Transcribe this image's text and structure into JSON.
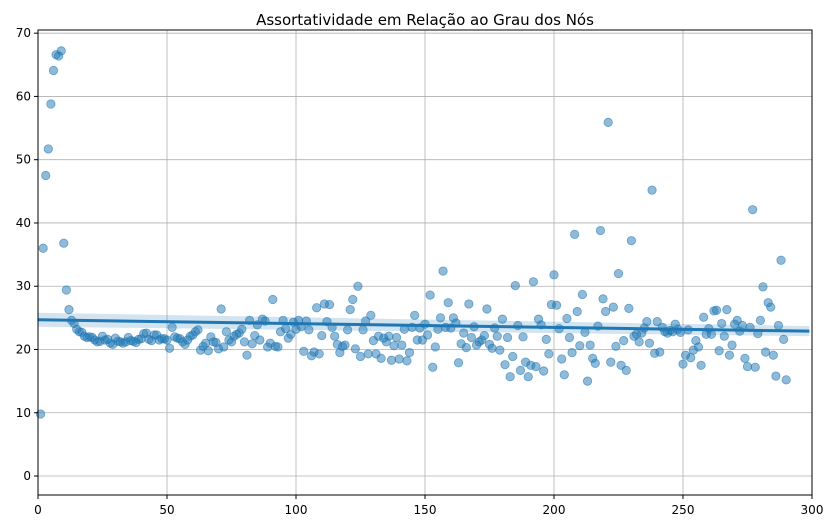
{
  "chart_data": {
    "type": "scatter",
    "title": "Assortatividade em Relação ao Grau dos Nós",
    "xlabel": "",
    "ylabel": "",
    "xlim": [
      0,
      300
    ],
    "ylim": [
      -3,
      70.5
    ],
    "x_ticks": [
      0,
      50,
      100,
      150,
      200,
      250,
      300
    ],
    "y_ticks": [
      0,
      10,
      20,
      30,
      40,
      50,
      60,
      70
    ],
    "grid": true,
    "colors": {
      "points": "#1f77b4",
      "line": "#1f77b4",
      "band": "#1f77b4"
    },
    "regression": {
      "x": [
        0,
        299
      ],
      "y": [
        24.7,
        22.9
      ],
      "ci_width": [
        1.1,
        0.8
      ]
    },
    "points": [
      [
        1,
        9.8
      ],
      [
        2,
        36
      ],
      [
        3,
        47.5
      ],
      [
        4,
        51.7
      ],
      [
        5,
        58.8
      ],
      [
        6,
        64.1
      ],
      [
        7,
        66.6
      ],
      [
        8,
        66.4
      ],
      [
        9,
        67.2
      ],
      [
        10,
        36.8
      ],
      [
        11,
        29.4
      ],
      [
        12,
        26.3
      ],
      [
        13,
        24.6
      ],
      [
        14,
        24.1
      ],
      [
        15,
        23.2
      ],
      [
        16,
        22.8
      ],
      [
        17,
        22.7
      ],
      [
        18,
        22.1
      ],
      [
        19,
        21.9
      ],
      [
        20,
        22
      ],
      [
        21,
        21.9
      ],
      [
        22,
        21.5
      ],
      [
        23,
        21.2
      ],
      [
        24,
        21.3
      ],
      [
        25,
        22.1
      ],
      [
        26,
        21.5
      ],
      [
        27,
        21.6
      ],
      [
        28,
        21
      ],
      [
        29,
        20.8
      ],
      [
        30,
        21.8
      ],
      [
        31,
        21.3
      ],
      [
        32,
        21.2
      ],
      [
        33,
        21
      ],
      [
        34,
        21.2
      ],
      [
        35,
        21.9
      ],
      [
        36,
        21.4
      ],
      [
        37,
        21.3
      ],
      [
        38,
        21.1
      ],
      [
        39,
        21.6
      ],
      [
        40,
        21.7
      ],
      [
        41,
        22.5
      ],
      [
        42,
        22.6
      ],
      [
        43,
        21.6
      ],
      [
        44,
        21.4
      ],
      [
        45,
        22.3
      ],
      [
        46,
        22.3
      ],
      [
        47,
        21.5
      ],
      [
        48,
        21.7
      ],
      [
        49,
        21.7
      ],
      [
        50,
        21.5
      ],
      [
        51,
        20.2
      ],
      [
        52,
        23.5
      ],
      [
        53,
        22
      ],
      [
        54,
        21.8
      ],
      [
        55,
        21.7
      ],
      [
        56,
        21.2
      ],
      [
        57,
        20.8
      ],
      [
        58,
        21.5
      ],
      [
        59,
        22.1
      ],
      [
        60,
        22.3
      ],
      [
        61,
        22.8
      ],
      [
        62,
        23.1
      ],
      [
        63,
        19.9
      ],
      [
        64,
        20.5
      ],
      [
        65,
        21
      ],
      [
        66,
        19.8
      ],
      [
        67,
        22
      ],
      [
        68,
        21.2
      ],
      [
        69,
        21.1
      ],
      [
        70,
        20.1
      ],
      [
        71,
        26.4
      ],
      [
        72,
        20.4
      ],
      [
        73,
        22.8
      ],
      [
        74,
        21.5
      ],
      [
        75,
        21.2
      ],
      [
        76,
        22.1
      ],
      [
        77,
        22.4
      ],
      [
        78,
        22.6
      ],
      [
        79,
        23.2
      ],
      [
        80,
        21.2
      ],
      [
        81,
        19.1
      ],
      [
        82,
        24.6
      ],
      [
        83,
        20.9
      ],
      [
        84,
        22.2
      ],
      [
        85,
        23.9
      ],
      [
        86,
        21.5
      ],
      [
        87,
        24.8
      ],
      [
        88,
        24.5
      ],
      [
        89,
        20.4
      ],
      [
        90,
        21
      ],
      [
        91,
        27.9
      ],
      [
        92,
        20.5
      ],
      [
        93,
        20.4
      ],
      [
        94,
        22.8
      ],
      [
        95,
        24.6
      ],
      [
        96,
        23.3
      ],
      [
        97,
        21.8
      ],
      [
        98,
        22.4
      ],
      [
        99,
        24.3
      ],
      [
        100,
        23.2
      ],
      [
        101,
        24.6
      ],
      [
        102,
        23.6
      ],
      [
        103,
        19.7
      ],
      [
        104,
        24.5
      ],
      [
        105,
        23.1
      ],
      [
        106,
        19
      ],
      [
        107,
        19.6
      ],
      [
        108,
        26.6
      ],
      [
        109,
        19.3
      ],
      [
        110,
        22.2
      ],
      [
        111,
        27.2
      ],
      [
        112,
        24.4
      ],
      [
        113,
        27.1
      ],
      [
        114,
        23.5
      ],
      [
        115,
        22.1
      ],
      [
        116,
        20.8
      ],
      [
        117,
        19.5
      ],
      [
        118,
        20.5
      ],
      [
        119,
        20.7
      ],
      [
        120,
        23.1
      ],
      [
        121,
        26.3
      ],
      [
        122,
        27.9
      ],
      [
        123,
        20.1
      ],
      [
        124,
        30
      ],
      [
        125,
        18.9
      ],
      [
        126,
        23.1
      ],
      [
        127,
        24.5
      ],
      [
        128,
        19.3
      ],
      [
        129,
        25.4
      ],
      [
        130,
        21.4
      ],
      [
        131,
        19.3
      ],
      [
        132,
        22.1
      ],
      [
        133,
        18.6
      ],
      [
        134,
        21.8
      ],
      [
        135,
        21.2
      ],
      [
        136,
        22.1
      ],
      [
        137,
        18.3
      ],
      [
        138,
        20.6
      ],
      [
        139,
        21.9
      ],
      [
        140,
        18.5
      ],
      [
        141,
        20.7
      ],
      [
        142,
        23.2
      ],
      [
        143,
        18.2
      ],
      [
        144,
        19.5
      ],
      [
        145,
        23.5
      ],
      [
        146,
        25.4
      ],
      [
        147,
        21.5
      ],
      [
        148,
        23.4
      ],
      [
        149,
        21.5
      ],
      [
        150,
        24
      ],
      [
        151,
        22.3
      ],
      [
        152,
        28.6
      ],
      [
        153,
        17.2
      ],
      [
        154,
        20.4
      ],
      [
        155,
        23.2
      ],
      [
        156,
        25
      ],
      [
        157,
        32.4
      ],
      [
        158,
        23.5
      ],
      [
        159,
        27.4
      ],
      [
        160,
        23.4
      ],
      [
        161,
        25
      ],
      [
        162,
        24.2
      ],
      [
        163,
        17.9
      ],
      [
        164,
        20.9
      ],
      [
        165,
        22.6
      ],
      [
        166,
        20.3
      ],
      [
        167,
        27.2
      ],
      [
        168,
        21.9
      ],
      [
        169,
        23.6
      ],
      [
        170,
        20.7
      ],
      [
        171,
        21.2
      ],
      [
        172,
        21.5
      ],
      [
        173,
        22.2
      ],
      [
        174,
        26.4
      ],
      [
        175,
        20.8
      ],
      [
        176,
        20.2
      ],
      [
        177,
        23.4
      ],
      [
        178,
        22.1
      ],
      [
        179,
        19.9
      ],
      [
        180,
        24.8
      ],
      [
        181,
        17.6
      ],
      [
        182,
        21.9
      ],
      [
        183,
        15.7
      ],
      [
        184,
        18.9
      ],
      [
        185,
        30.1
      ],
      [
        186,
        23.8
      ],
      [
        187,
        16.7
      ],
      [
        188,
        22
      ],
      [
        189,
        18
      ],
      [
        190,
        15.7
      ],
      [
        191,
        17.5
      ],
      [
        192,
        30.7
      ],
      [
        193,
        17.3
      ],
      [
        194,
        24.8
      ],
      [
        195,
        23.9
      ],
      [
        196,
        16.6
      ],
      [
        197,
        21.6
      ],
      [
        198,
        19.3
      ],
      [
        199,
        27.1
      ],
      [
        200,
        31.8
      ],
      [
        201,
        27
      ],
      [
        202,
        23.3
      ],
      [
        203,
        18.5
      ],
      [
        204,
        16
      ],
      [
        205,
        24.9
      ],
      [
        206,
        21.9
      ],
      [
        207,
        19.5
      ],
      [
        208,
        38.2
      ],
      [
        209,
        26
      ],
      [
        210,
        20.6
      ],
      [
        211,
        28.7
      ],
      [
        212,
        22.7
      ],
      [
        213,
        15
      ],
      [
        214,
        20.7
      ],
      [
        215,
        18.6
      ],
      [
        216,
        17.8
      ],
      [
        217,
        23.7
      ],
      [
        218,
        38.8
      ],
      [
        219,
        28
      ],
      [
        220,
        26
      ],
      [
        221,
        55.9
      ],
      [
        222,
        18
      ],
      [
        223,
        26.7
      ],
      [
        224,
        20.5
      ],
      [
        225,
        32
      ],
      [
        226,
        17.5
      ],
      [
        227,
        21.4
      ],
      [
        228,
        16.7
      ],
      [
        229,
        26.5
      ],
      [
        230,
        37.2
      ],
      [
        231,
        22.1
      ],
      [
        232,
        22.4
      ],
      [
        233,
        21.2
      ],
      [
        234,
        22.6
      ],
      [
        235,
        23.4
      ],
      [
        236,
        24.4
      ],
      [
        237,
        21
      ],
      [
        238,
        45.2
      ],
      [
        239,
        19.4
      ],
      [
        240,
        24.4
      ],
      [
        241,
        19.6
      ],
      [
        242,
        23.5
      ],
      [
        243,
        22.8
      ],
      [
        244,
        22.6
      ],
      [
        245,
        23
      ],
      [
        246,
        22.8
      ],
      [
        247,
        24
      ],
      [
        248,
        23.2
      ],
      [
        249,
        22.7
      ],
      [
        250,
        17.7
      ],
      [
        251,
        19.1
      ],
      [
        252,
        23.1
      ],
      [
        253,
        18.7
      ],
      [
        254,
        19.9
      ],
      [
        255,
        21.4
      ],
      [
        256,
        20.4
      ],
      [
        257,
        17.5
      ],
      [
        258,
        25.1
      ],
      [
        259,
        22.4
      ],
      [
        260,
        23.3
      ],
      [
        261,
        22.4
      ],
      [
        262,
        26.1
      ],
      [
        263,
        26.2
      ],
      [
        264,
        19.8
      ],
      [
        265,
        24.1
      ],
      [
        266,
        22.1
      ],
      [
        267,
        26.3
      ],
      [
        268,
        19.1
      ],
      [
        269,
        20.7
      ],
      [
        270,
        24
      ],
      [
        271,
        24.6
      ],
      [
        272,
        22.9
      ],
      [
        273,
        23.8
      ],
      [
        274,
        18.6
      ],
      [
        275,
        17.3
      ],
      [
        276,
        23.5
      ],
      [
        277,
        42.1
      ],
      [
        278,
        17.2
      ],
      [
        279,
        22.5
      ],
      [
        280,
        24.6
      ],
      [
        281,
        29.9
      ],
      [
        282,
        19.6
      ],
      [
        283,
        27.4
      ],
      [
        284,
        26.7
      ],
      [
        285,
        19.1
      ],
      [
        286,
        15.8
      ],
      [
        287,
        23.8
      ],
      [
        288,
        34.1
      ],
      [
        289,
        21.6
      ],
      [
        290,
        15.2
      ]
    ]
  }
}
